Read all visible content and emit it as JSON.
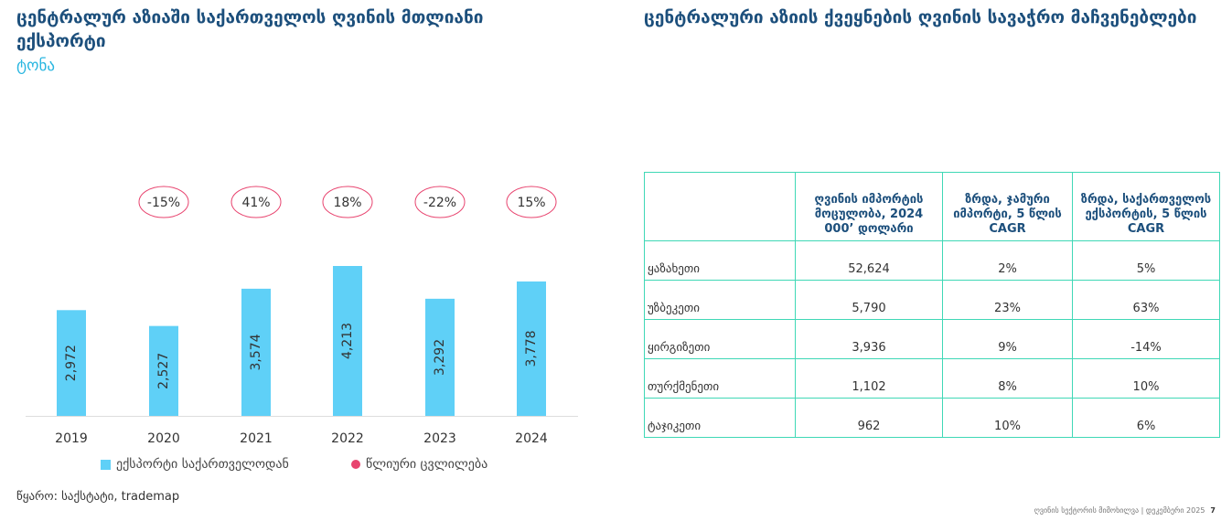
{
  "left": {
    "title": "ცენტრალურ აზიაში საქართველოს ღვინის მთლიანი ექსპორტი",
    "unit": "ტონა",
    "source": "წყარო: საქსტატი, trademap"
  },
  "right": {
    "title": "ცენტრალური აზიის ქვეყნების ღვინის სავაჭრო მაჩვენებლები"
  },
  "chart_data": {
    "type": "bar",
    "title": "ცენტრალურ აზიაში საქართველოს ღვინის მთლიანი ექსპორტი",
    "ylabel": "ტონა",
    "categories": [
      "2019",
      "2020",
      "2021",
      "2022",
      "2023",
      "2024"
    ],
    "values": [
      2972,
      2527,
      3574,
      4213,
      3292,
      3778
    ],
    "value_labels": [
      "2,972",
      "2,527",
      "3,574",
      "4,213",
      "3,292",
      "3,778"
    ],
    "annual_change": [
      "",
      "-15%",
      "41%",
      "18%",
      "-22%",
      "15%"
    ],
    "ylim": [
      0,
      4300
    ],
    "legend": [
      "ექსპორტი საქართველოდან",
      "წლიური ცვლილება"
    ],
    "colors": {
      "bar": "#5fd0f7",
      "change": "#e8446f"
    }
  },
  "table": {
    "headers": [
      "",
      "ღვინის იმპორტის მოცულობა, 2024 000’ დოლარი",
      "ზრდა, ჯამური იმპორტი, 5 წლის CAGR",
      "ზრდა, საქართველოს ექსპორტის, 5 წლის CAGR"
    ],
    "rows": [
      [
        "ყაზახეთი",
        "52,624",
        "2%",
        "5%"
      ],
      [
        "უზბეკეთი",
        "5,790",
        "23%",
        "63%"
      ],
      [
        "ყირგიზეთი",
        "3,936",
        "9%",
        "-14%"
      ],
      [
        "თურქმენეთი",
        "1,102",
        "8%",
        "10%"
      ],
      [
        "ტაჯიკეთი",
        "962",
        "10%",
        "6%"
      ]
    ]
  },
  "footer": {
    "text": "ღვინის სექტორის მიმოხილვა | დეკემბერი 2025",
    "page": "7"
  }
}
